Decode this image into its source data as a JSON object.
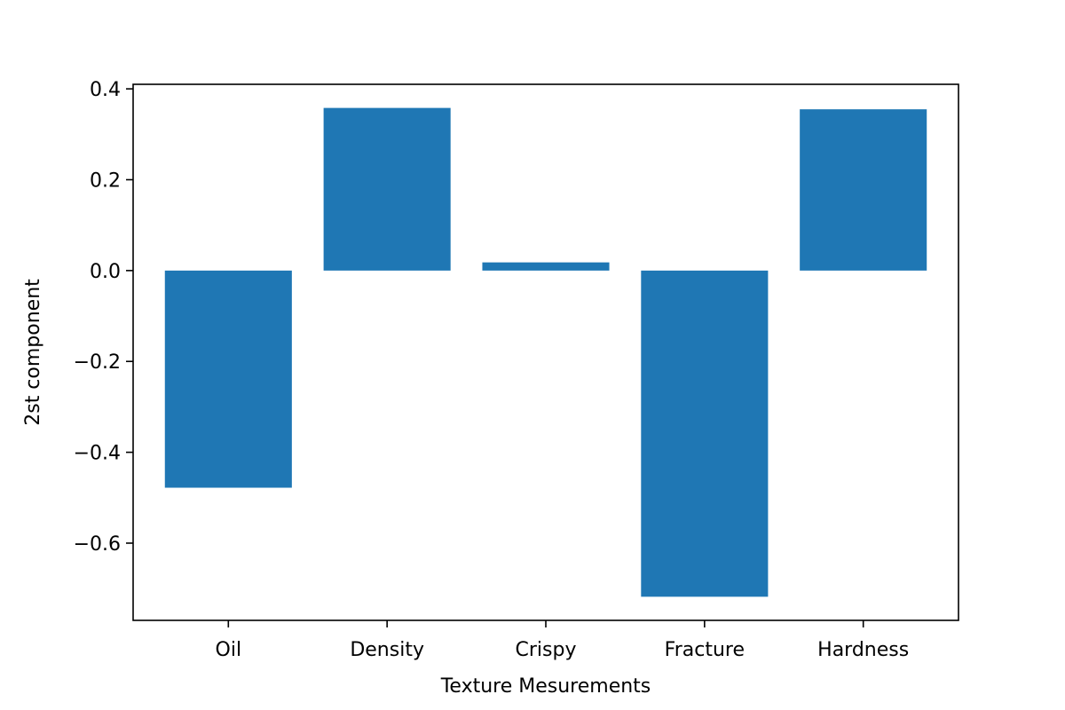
{
  "chart_data": {
    "type": "bar",
    "title": "",
    "xlabel": "Texture Mesurements",
    "ylabel": "2st component",
    "categories": [
      "Oil",
      "Density",
      "Crispy",
      "Fracture",
      "Hardness"
    ],
    "values": [
      -0.478,
      0.358,
      0.018,
      -0.718,
      0.355
    ],
    "ylim": [
      -0.77,
      0.41
    ],
    "yticks": [
      -0.6,
      -0.4,
      -0.2,
      0.0,
      0.2,
      0.4
    ],
    "ytick_labels": [
      "−0.6",
      "−0.4",
      "−0.2",
      "0.0",
      "0.2",
      "0.4"
    ],
    "bar_color": "#1f77b4",
    "grid": false,
    "legend": "none"
  }
}
